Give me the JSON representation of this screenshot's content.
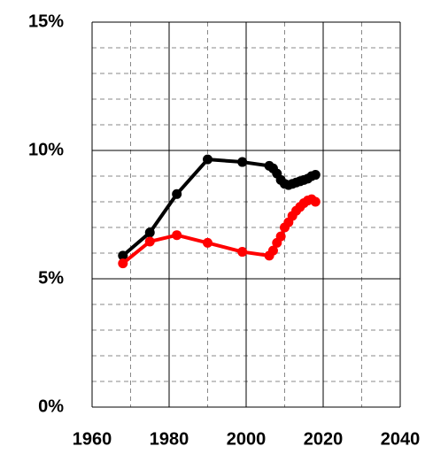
{
  "chart_data": {
    "type": "line",
    "x": [
      1968,
      1975,
      1982,
      1990,
      1999,
      2006,
      2007,
      2008,
      2009,
      2010,
      2011,
      2012,
      2013,
      2014,
      2015,
      2016,
      2017,
      2018
    ],
    "series": [
      {
        "color": "#000000",
        "values": [
          5.9,
          6.8,
          8.3,
          9.65,
          9.55,
          9.4,
          9.3,
          9.1,
          8.85,
          8.7,
          8.65,
          8.7,
          8.75,
          8.8,
          8.85,
          8.9,
          9.0,
          9.05
        ]
      },
      {
        "color": "#ff0000",
        "values": [
          5.6,
          6.45,
          6.7,
          6.4,
          6.05,
          5.9,
          6.1,
          6.4,
          6.65,
          7.0,
          7.2,
          7.45,
          7.65,
          7.8,
          7.95,
          8.05,
          8.1,
          8.0
        ]
      }
    ],
    "xlim": [
      1960,
      2040
    ],
    "xticks": [
      1960,
      1980,
      2000,
      2020,
      2040
    ],
    "ylim": [
      0,
      15
    ],
    "yticks": [
      {
        "value": 0,
        "label": "0%"
      },
      {
        "value": 5,
        "label": "5%"
      },
      {
        "value": 10,
        "label": "10%"
      },
      {
        "value": 15,
        "label": "15%"
      }
    ],
    "grid": true,
    "minor_grid": true
  }
}
